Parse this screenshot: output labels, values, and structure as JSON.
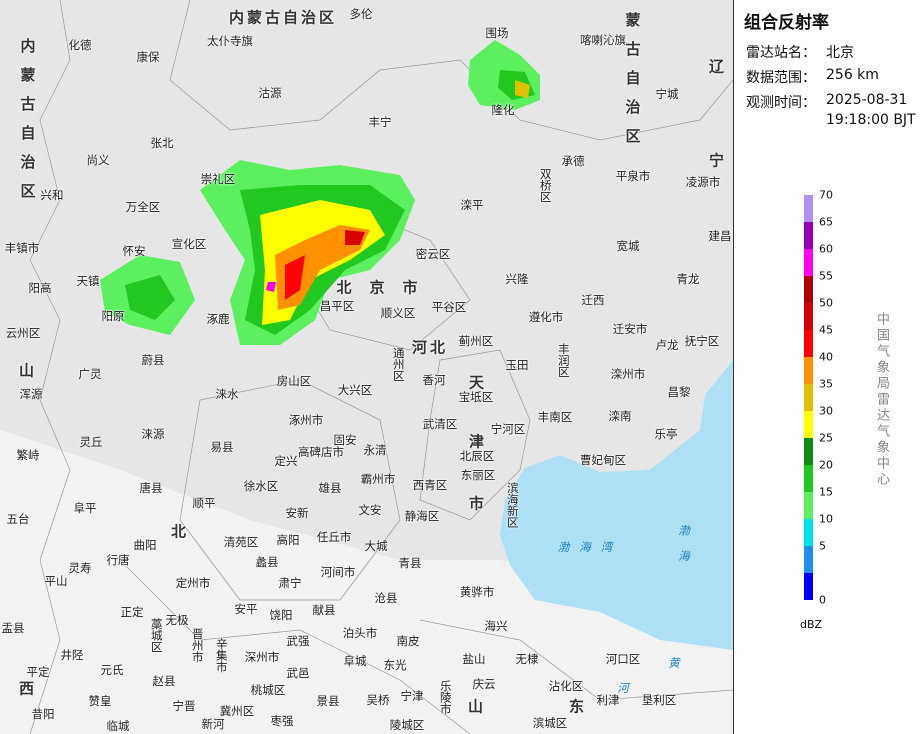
{
  "panel": {
    "title": "组合反射率",
    "station_label": "雷达站名：",
    "station": "北京",
    "range_label": "数据范围：",
    "range": "256 km",
    "time_label": "观测时间：",
    "date": "2025-08-31",
    "time": "19:18:00 BJT",
    "credit": "中国气象局雷达气象中心"
  },
  "legend": {
    "unit": "dBZ",
    "ticks": [
      0,
      5,
      10,
      15,
      20,
      25,
      30,
      35,
      40,
      45,
      50,
      55,
      60,
      65,
      70
    ],
    "colors": [
      "#0000f6",
      "#1e90f0",
      "#00e0e8",
      "#5cf060",
      "#20c820",
      "#108c10",
      "#ffff00",
      "#e0c000",
      "#ff9000",
      "#ff0000",
      "#d60000",
      "#b00000",
      "#ff00f0",
      "#9600b4",
      "#b090f0"
    ]
  },
  "map_labels": [
    "内蒙古自治区",
    "多伦",
    "化德",
    "康保",
    "太仆寺旗",
    "围场",
    "喀喇沁旗",
    "尚义",
    "张北",
    "沽源",
    "丰宁",
    "隆化",
    "承德",
    "平泉市",
    "凌源市",
    "宁城",
    "建昌",
    "崇礼区",
    "万全区",
    "兴和",
    "丰镇市",
    "怀安",
    "宣化区",
    "天镇",
    "阳高",
    "双桥区",
    "滦平",
    "兴隆",
    "宽城",
    "青龙",
    "密云区",
    "平谷区",
    "北京市",
    "昌平区",
    "顺义区",
    "涿鹿",
    "阳原",
    "蔚县",
    "广灵",
    "迁西",
    "遵化市",
    "迁安市",
    "卢龙",
    "抚宁区",
    "蓟州区",
    "玉田",
    "丰润区",
    "滦州市",
    "昌黎",
    "通州区",
    "香河",
    "宝坻区",
    "房山区",
    "大兴区",
    "涞水",
    "丰南区",
    "滦南",
    "乐亭",
    "涿州市",
    "武清区",
    "宁河区",
    "固安",
    "永清",
    "高碑店市",
    "定兴",
    "易县",
    "涞源",
    "灵丘",
    "繁峙",
    "北辰区",
    "东丽区",
    "曹妃甸区",
    "霸州市",
    "徐水区",
    "雄县",
    "西青区",
    "唐县",
    "顺平",
    "安新",
    "文安",
    "静海区",
    "滨海新区",
    "阜平",
    "五台",
    "清苑区",
    "高阳",
    "任丘市",
    "大城",
    "曲阳",
    "渤海湾",
    "渤海",
    "行唐",
    "灵寿",
    "定州市",
    "蠡县",
    "肃宁",
    "河间市",
    "青县",
    "平山",
    "黄骅市",
    "安平",
    "饶阳",
    "献县",
    "沧县",
    "正定",
    "无极",
    "藁城区",
    "晋州市",
    "辛集市",
    "深州市",
    "武强",
    "泊头市",
    "南皮",
    "海兴",
    "盂县",
    "井陉",
    "元氏",
    "赵县",
    "武邑",
    "阜城",
    "东光",
    "盐山",
    "无棣",
    "庆云",
    "沾化区",
    "河口区",
    "利津",
    "垦利区",
    "乐陵市",
    "宁津",
    "吴桥",
    "景县",
    "桃城区",
    "冀州区",
    "宁晋",
    "赞皇",
    "平定",
    "昔阳",
    "临城",
    "新河",
    "枣强",
    "陵城区",
    "滨城区",
    "山",
    "东",
    "河北",
    "北",
    "天",
    "津",
    "市",
    "内蒙古自治区",
    "内蒙古自治区",
    "辽",
    "宁",
    "山",
    "西",
    "云州区",
    "浑源",
    "黄",
    "河"
  ]
}
